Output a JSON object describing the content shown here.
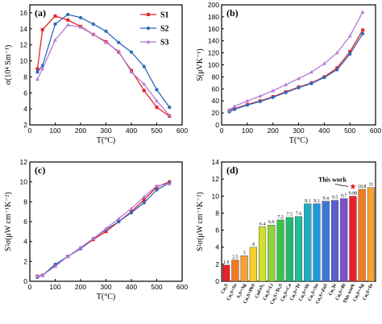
{
  "chart_data": [
    {
      "panel": "(a)",
      "type": "line",
      "xlabel": "T(°C)",
      "ylabel": "σ(10⁴ Sm⁻¹)",
      "xlim": [
        0,
        600
      ],
      "ylim": [
        2,
        17
      ],
      "xticks": [
        0,
        100,
        200,
        300,
        400,
        500,
        600
      ],
      "yticks": [
        2,
        4,
        6,
        8,
        10,
        12,
        14,
        16
      ],
      "legend_position": "top-right",
      "colors": {
        "S1": "#e8202a",
        "S2": "#2e6ab8",
        "S3": "#b57bd6"
      },
      "markers": {
        "S1": "square",
        "S2": "circle",
        "S3": "triangle"
      },
      "series": [
        {
          "name": "S1",
          "x": [
            30,
            50,
            100,
            150,
            200,
            250,
            300,
            350,
            400,
            450,
            500,
            550
          ],
          "y": [
            9.0,
            13.9,
            15.6,
            15.1,
            14.3,
            13.3,
            12.4,
            11.1,
            8.8,
            6.3,
            4.2,
            3.1
          ]
        },
        {
          "name": "S2",
          "x": [
            30,
            50,
            100,
            150,
            200,
            250,
            300,
            350,
            400,
            450,
            500,
            550
          ],
          "y": [
            8.6,
            9.4,
            14.6,
            15.8,
            15.4,
            14.6,
            13.7,
            12.3,
            11.1,
            9.3,
            6.4,
            4.2
          ]
        },
        {
          "name": "S3",
          "x": [
            30,
            50,
            100,
            150,
            200,
            250,
            300,
            350,
            400,
            450,
            500,
            550
          ],
          "y": [
            7.7,
            9.0,
            12.6,
            14.5,
            14.2,
            13.3,
            12.3,
            11.2,
            8.6,
            7.1,
            5.0,
            3.2
          ]
        }
      ]
    },
    {
      "panel": "(b)",
      "type": "line",
      "xlabel": "T(°C)",
      "ylabel": "S(μVK⁻¹)",
      "xlim": [
        0,
        600
      ],
      "ylim": [
        0,
        200
      ],
      "xticks": [
        0,
        100,
        200,
        300,
        400,
        500,
        600
      ],
      "yticks": [
        0,
        20,
        40,
        60,
        80,
        100,
        120,
        140,
        160,
        180,
        200
      ],
      "series": [
        {
          "name": "S1",
          "x": [
            30,
            50,
            100,
            150,
            200,
            250,
            300,
            350,
            400,
            450,
            500,
            550
          ],
          "y": [
            24,
            27,
            34,
            40,
            47,
            55,
            63,
            70,
            80,
            95,
            122,
            158
          ]
        },
        {
          "name": "S2",
          "x": [
            30,
            50,
            100,
            150,
            200,
            250,
            300,
            350,
            400,
            450,
            500,
            550
          ],
          "y": [
            22,
            26,
            33,
            39,
            46,
            54,
            62,
            69,
            79,
            92,
            118,
            152
          ]
        },
        {
          "name": "S3",
          "x": [
            30,
            50,
            100,
            150,
            200,
            250,
            300,
            350,
            400,
            450,
            500,
            550
          ],
          "y": [
            25,
            31,
            40,
            48,
            57,
            67,
            77,
            88,
            102,
            120,
            148,
            188
          ]
        }
      ]
    },
    {
      "panel": "(c)",
      "type": "line",
      "xlabel": "T(°C)",
      "ylabel": "S²σ(μW cm⁻¹K⁻²)",
      "xlim": [
        0,
        600
      ],
      "ylim": [
        0,
        12
      ],
      "xticks": [
        0,
        100,
        200,
        300,
        400,
        500,
        600
      ],
      "yticks": [
        0,
        2,
        4,
        6,
        8,
        10,
        12
      ],
      "series": [
        {
          "name": "S1",
          "x": [
            30,
            50,
            100,
            150,
            200,
            250,
            300,
            350,
            400,
            450,
            500,
            550
          ],
          "y": [
            0.5,
            0.6,
            1.6,
            2.5,
            3.3,
            4.2,
            5.0,
            6.0,
            7.0,
            8.2,
            9.5,
            10.0
          ]
        },
        {
          "name": "S2",
          "x": [
            30,
            50,
            100,
            150,
            200,
            250,
            300,
            350,
            400,
            450,
            500,
            550
          ],
          "y": [
            0.4,
            0.6,
            1.7,
            2.5,
            3.3,
            4.3,
            5.2,
            6.0,
            6.9,
            7.9,
            9.2,
            9.9
          ]
        },
        {
          "name": "S3",
          "x": [
            30,
            50,
            100,
            150,
            200,
            250,
            300,
            350,
            400,
            450,
            500,
            550
          ],
          "y": [
            0.5,
            0.6,
            1.5,
            2.5,
            3.4,
            4.3,
            5.3,
            6.3,
            7.3,
            8.5,
            9.6,
            9.8
          ]
        }
      ]
    },
    {
      "panel": "(d)",
      "type": "bar",
      "ylabel": "S²σ(μW cm⁻¹K⁻²)",
      "ylim": [
        0,
        14
      ],
      "yticks": [
        0,
        2,
        4,
        6,
        8,
        10,
        12,
        14
      ],
      "annotation": "This work",
      "categories": [
        "Cu₂S",
        "Cu₂S+Se",
        "S₂S+Ag",
        "Cu₂S+PbS",
        "CuFeS₂",
        "Cu₂S+Li",
        "Cu₂S+Te₂S",
        "Cu₂S+Ca",
        "Cu₂S+Te",
        "Cu₂S+Sb",
        "Cu₂S+Sn",
        "Cu₂S+ZnS",
        "Cu₂Te",
        "Cu₂S+Bi",
        "This work",
        "Cu₂S+Ag",
        "Cu₂S+In"
      ],
      "values": [
        1.9,
        2.5,
        3,
        4,
        6.4,
        6.6,
        7.2,
        7.5,
        7.6,
        9.1,
        9.1,
        9.4,
        9.5,
        9.7,
        9.98,
        10.8,
        11
      ],
      "value_labels": [
        "1.9",
        "2.5",
        "3",
        "4",
        "6.4",
        "6.6",
        "7.2",
        "7.5",
        "7.6",
        "9.1",
        "9.1",
        "9.4",
        "9.5",
        "9.7",
        "9.98",
        "10.8",
        "11"
      ],
      "bar_colors": [
        "#e8202a",
        "#f47a20",
        "#f6a235",
        "#f6cf2e",
        "#cfe12e",
        "#8fd23c",
        "#39c24a",
        "#22b86f",
        "#1fbf9a",
        "#1fb0c3",
        "#2296d8",
        "#3a78d6",
        "#5a5fd4",
        "#7d4fd0",
        "#e8202a",
        "#f47a20",
        "#f6a235"
      ]
    }
  ]
}
